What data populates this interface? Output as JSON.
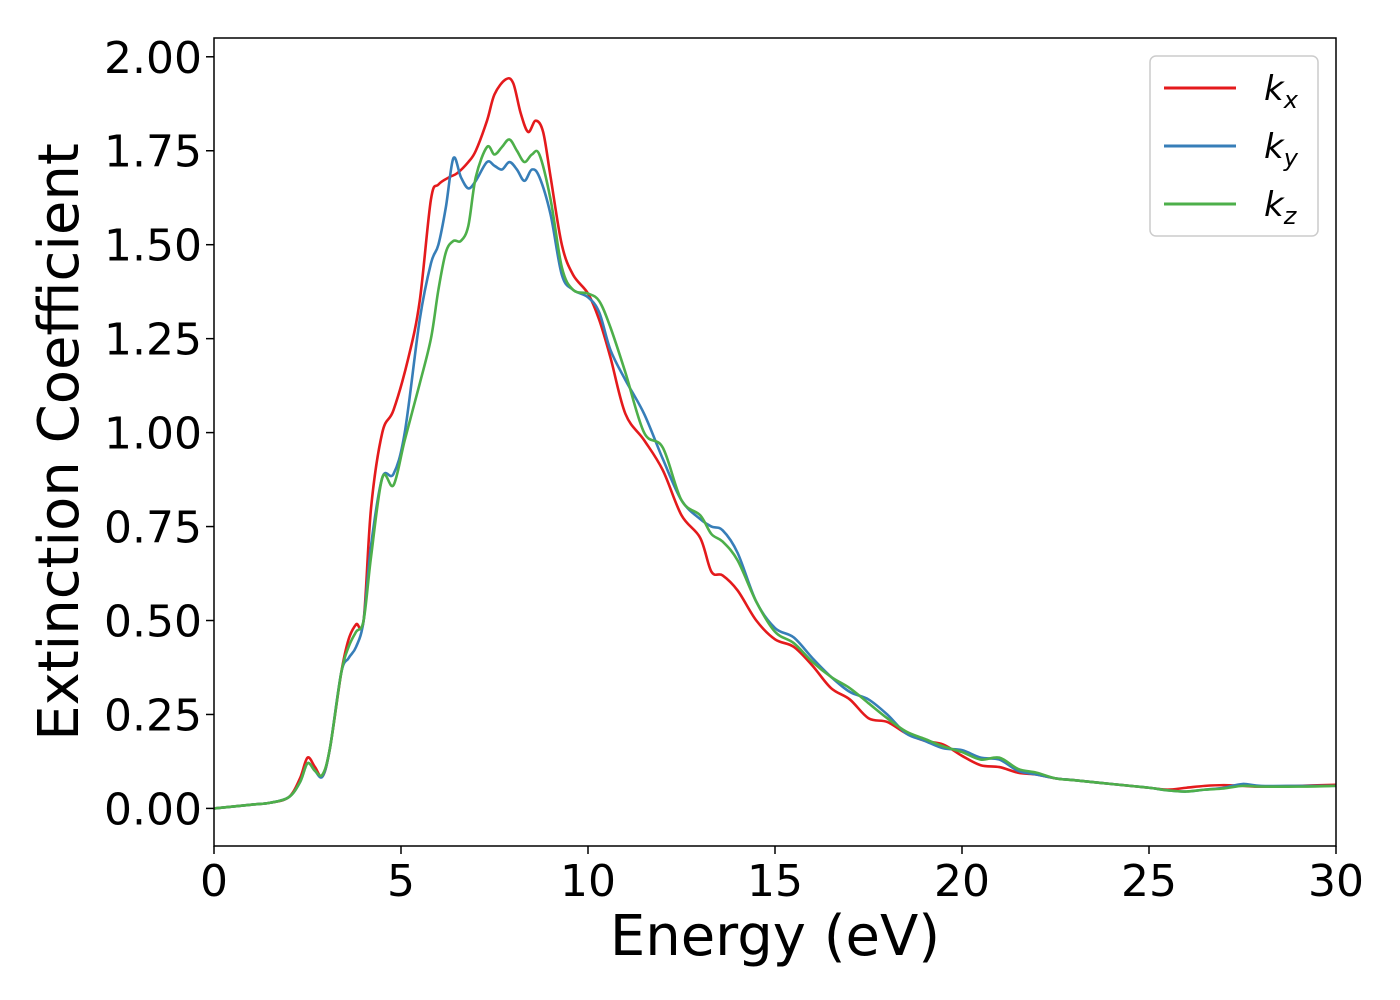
{
  "chart_data": {
    "type": "line",
    "xlabel": "Energy (eV)",
    "ylabel": "Extinction Coefficient",
    "xlim": [
      0,
      30
    ],
    "ylim": [
      -0.1,
      2.05
    ],
    "xticks": [
      "0",
      "5",
      "10",
      "15",
      "20",
      "25",
      "30"
    ],
    "yticks": [
      "0.00",
      "0.25",
      "0.50",
      "0.75",
      "1.00",
      "1.25",
      "1.50",
      "1.75",
      "2.00"
    ],
    "grid": false,
    "legend_position": "top-right",
    "series": [
      {
        "name": "k",
        "subscript": "x",
        "color": "#e41a1c",
        "points": [
          [
            0,
            0
          ],
          [
            1,
            0.01
          ],
          [
            1.5,
            0.015
          ],
          [
            2,
            0.03
          ],
          [
            2.3,
            0.08
          ],
          [
            2.5,
            0.135
          ],
          [
            2.7,
            0.11
          ],
          [
            2.9,
            0.085
          ],
          [
            3.1,
            0.16
          ],
          [
            3.4,
            0.36
          ],
          [
            3.6,
            0.45
          ],
          [
            3.8,
            0.49
          ],
          [
            4.0,
            0.5
          ],
          [
            4.2,
            0.8
          ],
          [
            4.5,
            1.0
          ],
          [
            4.8,
            1.06
          ],
          [
            5.2,
            1.2
          ],
          [
            5.5,
            1.35
          ],
          [
            5.8,
            1.62
          ],
          [
            6.0,
            1.66
          ],
          [
            6.3,
            1.68
          ],
          [
            6.5,
            1.69
          ],
          [
            6.8,
            1.72
          ],
          [
            7.0,
            1.75
          ],
          [
            7.3,
            1.83
          ],
          [
            7.5,
            1.9
          ],
          [
            7.8,
            1.94
          ],
          [
            8.0,
            1.93
          ],
          [
            8.2,
            1.85
          ],
          [
            8.4,
            1.8
          ],
          [
            8.6,
            1.83
          ],
          [
            8.8,
            1.8
          ],
          [
            9.0,
            1.68
          ],
          [
            9.3,
            1.5
          ],
          [
            9.6,
            1.42
          ],
          [
            10.0,
            1.37
          ],
          [
            10.3,
            1.3
          ],
          [
            10.6,
            1.2
          ],
          [
            11.0,
            1.05
          ],
          [
            11.5,
            0.98
          ],
          [
            12.0,
            0.9
          ],
          [
            12.5,
            0.78
          ],
          [
            13.0,
            0.72
          ],
          [
            13.3,
            0.63
          ],
          [
            13.6,
            0.62
          ],
          [
            14.0,
            0.58
          ],
          [
            14.5,
            0.5
          ],
          [
            15.0,
            0.45
          ],
          [
            15.5,
            0.43
          ],
          [
            16.0,
            0.38
          ],
          [
            16.5,
            0.32
          ],
          [
            17.0,
            0.29
          ],
          [
            17.5,
            0.24
          ],
          [
            18.0,
            0.23
          ],
          [
            18.5,
            0.2
          ],
          [
            19.0,
            0.18
          ],
          [
            19.5,
            0.17
          ],
          [
            20.0,
            0.14
          ],
          [
            20.5,
            0.115
          ],
          [
            21.0,
            0.11
          ],
          [
            21.5,
            0.095
          ],
          [
            22.0,
            0.09
          ],
          [
            22.5,
            0.08
          ],
          [
            23.0,
            0.075
          ],
          [
            24.0,
            0.065
          ],
          [
            25.0,
            0.055
          ],
          [
            25.5,
            0.05
          ],
          [
            26.0,
            0.055
          ],
          [
            26.5,
            0.06
          ],
          [
            27.0,
            0.062
          ],
          [
            27.5,
            0.06
          ],
          [
            28.0,
            0.058
          ],
          [
            29.0,
            0.06
          ],
          [
            30.0,
            0.063
          ]
        ]
      },
      {
        "name": "k",
        "subscript": "y",
        "color": "#377eb8",
        "points": [
          [
            0,
            0
          ],
          [
            1,
            0.01
          ],
          [
            1.5,
            0.015
          ],
          [
            2,
            0.03
          ],
          [
            2.3,
            0.07
          ],
          [
            2.5,
            0.12
          ],
          [
            2.7,
            0.1
          ],
          [
            2.9,
            0.085
          ],
          [
            3.1,
            0.16
          ],
          [
            3.4,
            0.36
          ],
          [
            3.6,
            0.4
          ],
          [
            3.8,
            0.43
          ],
          [
            4.0,
            0.5
          ],
          [
            4.2,
            0.7
          ],
          [
            4.5,
            0.88
          ],
          [
            4.8,
            0.89
          ],
          [
            5.1,
            1.0
          ],
          [
            5.5,
            1.3
          ],
          [
            5.8,
            1.45
          ],
          [
            6.0,
            1.5
          ],
          [
            6.2,
            1.6
          ],
          [
            6.4,
            1.73
          ],
          [
            6.6,
            1.68
          ],
          [
            6.8,
            1.65
          ],
          [
            7.0,
            1.67
          ],
          [
            7.3,
            1.72
          ],
          [
            7.5,
            1.71
          ],
          [
            7.7,
            1.7
          ],
          [
            7.9,
            1.72
          ],
          [
            8.1,
            1.7
          ],
          [
            8.3,
            1.67
          ],
          [
            8.5,
            1.7
          ],
          [
            8.7,
            1.68
          ],
          [
            9.0,
            1.58
          ],
          [
            9.3,
            1.42
          ],
          [
            9.6,
            1.38
          ],
          [
            10.0,
            1.36
          ],
          [
            10.3,
            1.32
          ],
          [
            10.6,
            1.22
          ],
          [
            11.0,
            1.14
          ],
          [
            11.5,
            1.05
          ],
          [
            12.0,
            0.93
          ],
          [
            12.5,
            0.82
          ],
          [
            13.0,
            0.77
          ],
          [
            13.3,
            0.75
          ],
          [
            13.6,
            0.74
          ],
          [
            14.0,
            0.68
          ],
          [
            14.5,
            0.55
          ],
          [
            15.0,
            0.48
          ],
          [
            15.5,
            0.455
          ],
          [
            16.0,
            0.4
          ],
          [
            16.5,
            0.35
          ],
          [
            17.0,
            0.31
          ],
          [
            17.5,
            0.29
          ],
          [
            18.0,
            0.25
          ],
          [
            18.5,
            0.2
          ],
          [
            19.0,
            0.18
          ],
          [
            19.5,
            0.16
          ],
          [
            20.0,
            0.155
          ],
          [
            20.5,
            0.135
          ],
          [
            21.0,
            0.13
          ],
          [
            21.5,
            0.1
          ],
          [
            22.0,
            0.09
          ],
          [
            22.5,
            0.08
          ],
          [
            23.0,
            0.075
          ],
          [
            24.0,
            0.065
          ],
          [
            25.0,
            0.055
          ],
          [
            25.5,
            0.048
          ],
          [
            26.0,
            0.045
          ],
          [
            26.5,
            0.05
          ],
          [
            27.0,
            0.055
          ],
          [
            27.5,
            0.065
          ],
          [
            28.0,
            0.06
          ],
          [
            29.0,
            0.06
          ],
          [
            30.0,
            0.06
          ]
        ]
      },
      {
        "name": "k",
        "subscript": "z",
        "color": "#4daf4a",
        "points": [
          [
            0,
            0
          ],
          [
            1,
            0.01
          ],
          [
            1.5,
            0.015
          ],
          [
            2,
            0.03
          ],
          [
            2.3,
            0.07
          ],
          [
            2.5,
            0.12
          ],
          [
            2.7,
            0.1
          ],
          [
            2.9,
            0.09
          ],
          [
            3.1,
            0.16
          ],
          [
            3.4,
            0.36
          ],
          [
            3.6,
            0.43
          ],
          [
            3.8,
            0.47
          ],
          [
            4.0,
            0.5
          ],
          [
            4.2,
            0.67
          ],
          [
            4.5,
            0.88
          ],
          [
            4.8,
            0.86
          ],
          [
            5.1,
            0.98
          ],
          [
            5.5,
            1.13
          ],
          [
            5.8,
            1.25
          ],
          [
            6.0,
            1.38
          ],
          [
            6.2,
            1.48
          ],
          [
            6.4,
            1.51
          ],
          [
            6.6,
            1.51
          ],
          [
            6.8,
            1.55
          ],
          [
            7.0,
            1.68
          ],
          [
            7.3,
            1.76
          ],
          [
            7.5,
            1.74
          ],
          [
            7.7,
            1.76
          ],
          [
            7.9,
            1.78
          ],
          [
            8.1,
            1.75
          ],
          [
            8.3,
            1.72
          ],
          [
            8.5,
            1.74
          ],
          [
            8.7,
            1.74
          ],
          [
            9.0,
            1.62
          ],
          [
            9.3,
            1.44
          ],
          [
            9.6,
            1.38
          ],
          [
            10.0,
            1.37
          ],
          [
            10.3,
            1.35
          ],
          [
            10.6,
            1.28
          ],
          [
            11.0,
            1.16
          ],
          [
            11.5,
            1.0
          ],
          [
            12.0,
            0.96
          ],
          [
            12.5,
            0.82
          ],
          [
            13.0,
            0.78
          ],
          [
            13.3,
            0.73
          ],
          [
            13.6,
            0.71
          ],
          [
            14.0,
            0.66
          ],
          [
            14.5,
            0.55
          ],
          [
            15.0,
            0.47
          ],
          [
            15.5,
            0.44
          ],
          [
            16.0,
            0.39
          ],
          [
            16.5,
            0.35
          ],
          [
            17.0,
            0.32
          ],
          [
            17.5,
            0.28
          ],
          [
            18.0,
            0.24
          ],
          [
            18.5,
            0.205
          ],
          [
            19.0,
            0.185
          ],
          [
            19.5,
            0.165
          ],
          [
            20.0,
            0.15
          ],
          [
            20.5,
            0.13
          ],
          [
            21.0,
            0.135
          ],
          [
            21.5,
            0.105
          ],
          [
            22.0,
            0.095
          ],
          [
            22.5,
            0.08
          ],
          [
            23.0,
            0.075
          ],
          [
            24.0,
            0.065
          ],
          [
            25.0,
            0.055
          ],
          [
            25.5,
            0.048
          ],
          [
            26.0,
            0.045
          ],
          [
            26.5,
            0.05
          ],
          [
            27.0,
            0.053
          ],
          [
            27.5,
            0.06
          ],
          [
            28.0,
            0.058
          ],
          [
            29.0,
            0.058
          ],
          [
            30.0,
            0.06
          ]
        ]
      }
    ]
  }
}
